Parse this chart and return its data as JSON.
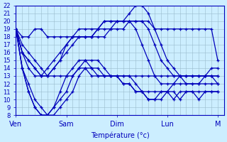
{
  "xlabel": "Température (°c)",
  "background_color": "#cceeff",
  "grid_color": "#99bbcc",
  "line_color": "#0000bb",
  "marker": "+",
  "ylim": [
    8,
    22
  ],
  "yticks": [
    8,
    9,
    10,
    11,
    12,
    13,
    14,
    15,
    16,
    17,
    18,
    19,
    20,
    21,
    22
  ],
  "x_day_labels": [
    "Ven",
    "Sam",
    "Dim",
    "Lun",
    "M"
  ],
  "x_day_positions": [
    0,
    8,
    16,
    24,
    32
  ],
  "series": [
    {
      "x": [
        0,
        1,
        2,
        3,
        4,
        5,
        6,
        7,
        8,
        9,
        10,
        11,
        12,
        13,
        14,
        15,
        16,
        17,
        18,
        19,
        20,
        21,
        22,
        23,
        24,
        25,
        26,
        27,
        28,
        29,
        30,
        31,
        32
      ],
      "y": [
        19,
        18,
        18,
        19,
        19,
        18,
        18,
        18,
        18,
        18,
        18,
        18,
        18,
        18,
        18,
        19,
        19,
        19,
        20,
        20,
        20,
        20,
        19,
        19,
        19,
        19,
        19,
        19,
        19,
        19,
        19,
        19,
        15
      ]
    },
    {
      "x": [
        0,
        1,
        2,
        3,
        4,
        5,
        6,
        7,
        8,
        9,
        10,
        11,
        12,
        13,
        14,
        15,
        16,
        17,
        18,
        19,
        20,
        21,
        22,
        23,
        24,
        25,
        26,
        27,
        28,
        29,
        30,
        31,
        32
      ],
      "y": [
        19,
        17,
        16,
        15,
        14,
        13,
        13,
        13,
        13,
        13,
        14,
        14,
        13,
        13,
        13,
        13,
        13,
        13,
        13,
        13,
        13,
        13,
        13,
        13,
        13,
        13,
        13,
        13,
        13,
        13,
        13,
        13,
        13
      ]
    },
    {
      "x": [
        0,
        1,
        2,
        3,
        4,
        5,
        6,
        7,
        8,
        9,
        10,
        11,
        12,
        13,
        14,
        15,
        16,
        17,
        18,
        19,
        20,
        21,
        22,
        23,
        24,
        25,
        26,
        27,
        28,
        29,
        30,
        31,
        32
      ],
      "y": [
        19,
        16,
        14,
        13,
        13,
        14,
        15,
        16,
        17,
        18,
        18,
        18,
        18,
        19,
        19,
        19,
        20,
        20,
        20,
        20,
        20,
        19,
        17,
        15,
        14,
        13,
        13,
        13,
        13,
        13,
        13,
        13,
        13
      ]
    },
    {
      "x": [
        0,
        1,
        2,
        3,
        4,
        5,
        6,
        7,
        8,
        9,
        10,
        11,
        12,
        13,
        14,
        15,
        16,
        17,
        18,
        19,
        20,
        21,
        22,
        23,
        24,
        25,
        26,
        27,
        28,
        29,
        30,
        31,
        32
      ],
      "y": [
        19,
        14,
        12,
        10,
        9,
        8,
        8,
        9,
        10,
        11,
        13,
        14,
        14,
        14,
        13,
        13,
        13,
        13,
        13,
        12,
        11,
        11,
        11,
        11,
        11,
        10,
        11,
        11,
        11,
        11,
        11,
        11,
        11
      ]
    },
    {
      "x": [
        0,
        1,
        2,
        3,
        4,
        5,
        6,
        7,
        8,
        9,
        10,
        11,
        12,
        13,
        14,
        15,
        16,
        17,
        18,
        19,
        20,
        21,
        22,
        23,
        24,
        25,
        26,
        27,
        28,
        29,
        30,
        31,
        32
      ],
      "y": [
        19,
        16,
        15,
        14,
        13,
        13,
        14,
        15,
        16,
        17,
        18,
        18,
        18,
        19,
        20,
        20,
        20,
        20,
        20,
        19,
        17,
        15,
        13,
        12,
        12,
        12,
        12,
        12,
        12,
        12,
        12,
        12,
        12
      ]
    },
    {
      "x": [
        0,
        1,
        2,
        3,
        4,
        5,
        6,
        7,
        8,
        9,
        10,
        11,
        12,
        13,
        14,
        15,
        16,
        17,
        18,
        19,
        20,
        21,
        22,
        23,
        24,
        25,
        26,
        27,
        28,
        29,
        30,
        31,
        32
      ],
      "y": [
        19,
        14,
        11,
        9,
        8,
        8,
        9,
        10,
        11,
        13,
        14,
        15,
        15,
        15,
        14,
        13,
        13,
        12,
        12,
        11,
        11,
        10,
        10,
        10,
        11,
        12,
        13,
        13,
        13,
        13,
        13,
        14,
        14
      ]
    },
    {
      "x": [
        0,
        1,
        2,
        3,
        4,
        5,
        6,
        7,
        8,
        9,
        10,
        11,
        12,
        13,
        14,
        15,
        16,
        17,
        18,
        19,
        20,
        21,
        22,
        23,
        24,
        25,
        26,
        27,
        28,
        29,
        30,
        31,
        32
      ],
      "y": [
        19,
        16,
        15,
        14,
        13,
        13,
        14,
        15,
        17,
        18,
        19,
        19,
        19,
        19,
        20,
        20,
        20,
        20,
        21,
        22,
        22,
        21,
        19,
        17,
        15,
        14,
        13,
        12,
        12,
        12,
        13,
        13,
        12
      ]
    },
    {
      "x": [
        0,
        1,
        2,
        3,
        4,
        5,
        6,
        7,
        8,
        9,
        10,
        11,
        12,
        13,
        14,
        15,
        16,
        17,
        18,
        19,
        20,
        21,
        22,
        23,
        24,
        25,
        26,
        27,
        28,
        29,
        30,
        31,
        32
      ],
      "y": [
        19,
        14,
        11,
        9,
        8,
        8,
        9,
        11,
        13,
        14,
        15,
        15,
        14,
        13,
        13,
        13,
        13,
        12,
        12,
        11,
        11,
        10,
        10,
        11,
        11,
        11,
        10,
        11,
        11,
        10,
        11,
        11,
        11
      ]
    }
  ]
}
